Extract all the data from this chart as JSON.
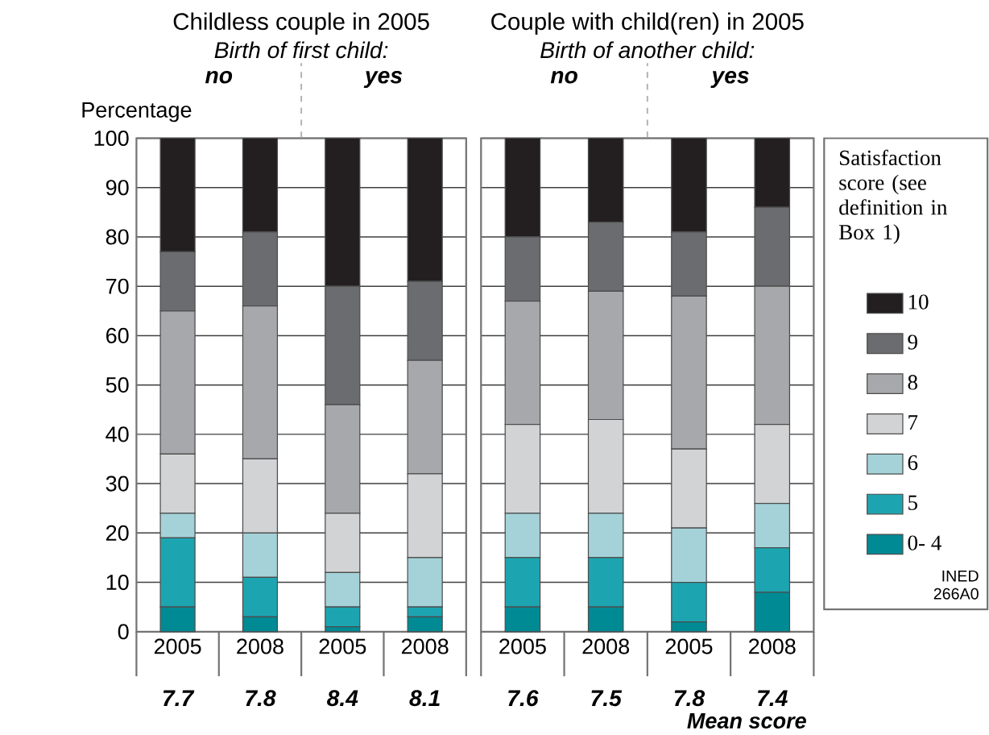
{
  "chart_data": [
    {
      "type": "bar",
      "stacked": true,
      "title": "Childless couple in 2005",
      "subtitle": "Birth of first child:",
      "ylabel": "Percentage",
      "categories": [
        "2005",
        "2008",
        "2005",
        "2008"
      ],
      "series": [
        {
          "color": "#008a94",
          "values": [
            5,
            3,
            1,
            3
          ]
        },
        {
          "color": "#1ca5b0",
          "values": [
            14,
            8,
            4,
            2
          ]
        },
        {
          "color": "#a4d2d8",
          "values": [
            5,
            9,
            7,
            10
          ]
        },
        {
          "color": "#d2d3d5",
          "values": [
            12,
            15,
            12,
            17
          ]
        },
        {
          "color": "#a7a8ab",
          "values": [
            29,
            31,
            22,
            23
          ]
        },
        {
          "color": "#6b6c6f",
          "values": [
            12,
            15,
            24,
            16
          ]
        },
        {
          "color": "#231f20",
          "values": [
            23,
            19,
            30,
            29
          ]
        }
      ],
      "ylim": [
        0,
        100
      ],
      "yticks": [
        0,
        10,
        20,
        30,
        40,
        50,
        60,
        70,
        80,
        90,
        100
      ],
      "grid": "y",
      "legend": false,
      "annotations": [
        "no",
        "yes",
        "7.7",
        "7.8",
        "8.4",
        "8.1"
      ]
    },
    {
      "type": "bar",
      "stacked": true,
      "title": "Couple with child(ren) in 2005",
      "subtitle": "Birth of another child:",
      "legend_title": "Satisfaction score (see definition in Box 1)",
      "categories": [
        "2005",
        "2008",
        "2005",
        "2008"
      ],
      "series": [
        {
          "name": "0- 4",
          "color": "#008a94",
          "values": [
            5,
            5,
            2,
            8
          ]
        },
        {
          "name": "5",
          "color": "#1ca5b0",
          "values": [
            10,
            10,
            8,
            9
          ]
        },
        {
          "name": "6",
          "color": "#a4d2d8",
          "values": [
            9,
            9,
            11,
            9
          ]
        },
        {
          "name": "7",
          "color": "#d2d3d5",
          "values": [
            18,
            19,
            16,
            16
          ]
        },
        {
          "name": "8",
          "color": "#a7a8ab",
          "values": [
            25,
            26,
            31,
            28
          ]
        },
        {
          "name": "9",
          "color": "#6b6c6f",
          "values": [
            13,
            14,
            13,
            16
          ]
        },
        {
          "name": "10",
          "color": "#231f20",
          "values": [
            20,
            17,
            19,
            14
          ]
        }
      ],
      "ylim": [
        0,
        100
      ],
      "yticks": [
        0,
        10,
        20,
        30,
        40,
        50,
        60,
        70,
        80,
        90,
        100
      ],
      "grid": "y",
      "legend": "right",
      "tick_labels": "x",
      "annotations": [
        "no",
        "yes",
        "7.6",
        "7.5",
        "7.8",
        "7.4",
        "Mean score",
        "INED 266A0"
      ]
    }
  ]
}
